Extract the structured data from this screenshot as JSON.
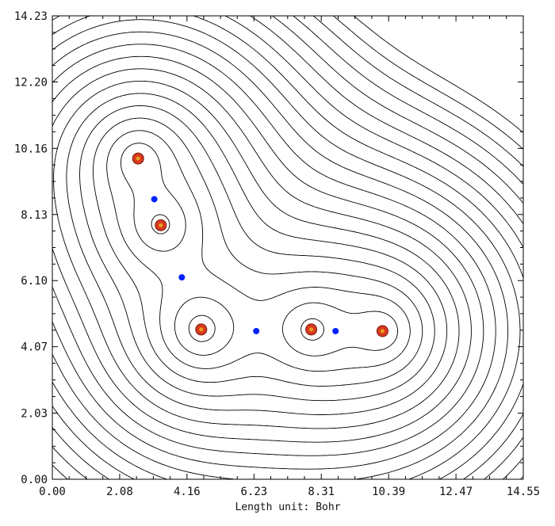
{
  "chart_data": {
    "type": "contour",
    "xlabel": "Length unit: Bohr",
    "xlim": [
      0.0,
      14.55
    ],
    "ylim": [
      0.0,
      14.23
    ],
    "x_ticks": [
      "0.00",
      "2.08",
      "4.16",
      "6.23",
      "8.31",
      "10.39",
      "12.47",
      "14.55"
    ],
    "y_ticks": [
      "0.00",
      "2.03",
      "4.07",
      "6.10",
      "8.13",
      "10.16",
      "12.20",
      "14.23"
    ],
    "nuclei": [
      {
        "x": 2.65,
        "y": 9.85
      },
      {
        "x": 3.35,
        "y": 7.8
      },
      {
        "x": 4.6,
        "y": 4.6
      },
      {
        "x": 8.0,
        "y": 4.6
      },
      {
        "x": 10.2,
        "y": 4.55
      }
    ],
    "critical_points": [
      {
        "x": 3.15,
        "y": 8.6
      },
      {
        "x": 4.0,
        "y": 6.2
      },
      {
        "x": 6.3,
        "y": 4.55
      },
      {
        "x": 8.75,
        "y": 4.55
      }
    ],
    "grid": false,
    "colors": {
      "contour_positive": "#000000",
      "contour_negative": "#000000",
      "critical_point": "#0022ff",
      "nucleus": "#d83a1f",
      "nucleus_core": "#e8a020"
    }
  }
}
